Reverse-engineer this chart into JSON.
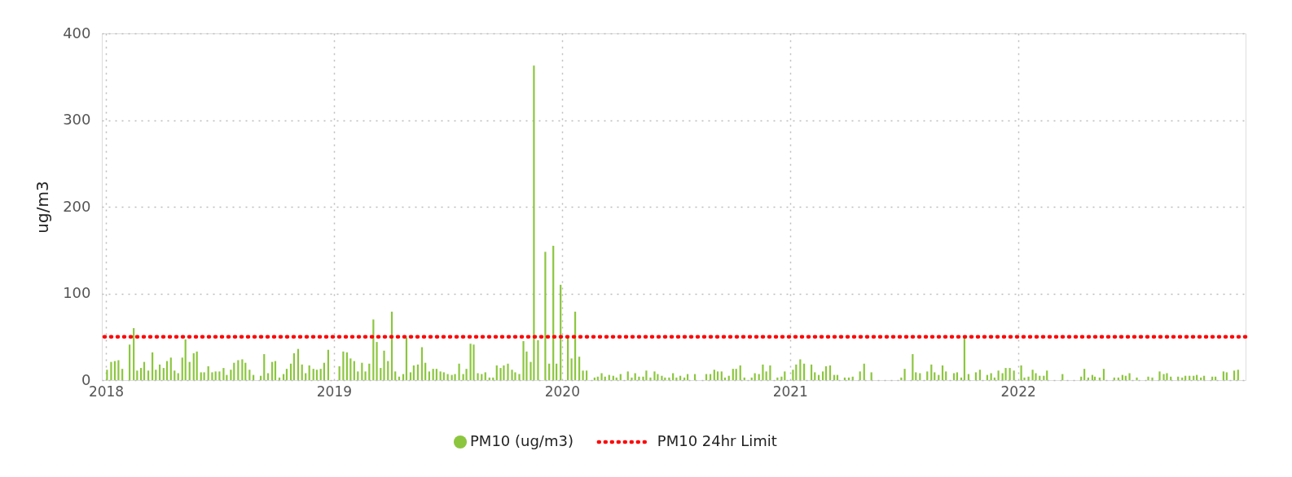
{
  "chart_data": {
    "type": "bar",
    "ylabel": "ug/m3",
    "x": [
      2018.005,
      2018.023,
      2018.039,
      2018.055,
      2018.072,
      2018.104,
      2018.122,
      2018.137,
      2018.154,
      2018.168,
      2018.186,
      2018.204,
      2018.219,
      2018.236,
      2018.253,
      2018.268,
      2018.285,
      2018.301,
      2018.317,
      2018.335,
      2018.349,
      2018.367,
      2018.385,
      2018.399,
      2018.417,
      2018.431,
      2018.449,
      2018.466,
      2018.481,
      2018.498,
      2018.516,
      2018.53,
      2018.548,
      2018.562,
      2018.58,
      2018.598,
      2018.612,
      2018.63,
      2018.647,
      2018.679,
      2018.694,
      2018.711,
      2018.729,
      2018.743,
      2018.761,
      2018.779,
      2018.793,
      2018.811,
      2018.825,
      2018.843,
      2018.86,
      2018.876,
      2018.892,
      2018.91,
      2018.925,
      2018.942,
      2018.957,
      2018.975,
      2019.024,
      2019.041,
      2019.057,
      2019.073,
      2019.089,
      2019.105,
      2019.123,
      2019.138,
      2019.155,
      2019.173,
      2019.188,
      2019.205,
      2019.22,
      2019.237,
      2019.254,
      2019.269,
      2019.286,
      2019.304,
      2019.318,
      2019.336,
      2019.35,
      2019.368,
      2019.386,
      2019.401,
      2019.418,
      2019.435,
      2019.45,
      2019.467,
      2019.482,
      2019.499,
      2019.517,
      2019.531,
      2019.549,
      2019.567,
      2019.581,
      2019.599,
      2019.613,
      2019.631,
      2019.648,
      2019.664,
      2019.682,
      2019.698,
      2019.714,
      2019.731,
      2019.745,
      2019.763,
      2019.781,
      2019.795,
      2019.813,
      2019.831,
      2019.845,
      2019.863,
      2019.877,
      2019.895,
      2019.927,
      2019.944,
      2019.962,
      2019.976,
      2019.994,
      2020.026,
      2020.042,
      2020.058,
      2020.076,
      2020.092,
      2020.108,
      2020.143,
      2020.157,
      2020.174,
      2020.189,
      2020.207,
      2020.225,
      2020.239,
      2020.257,
      2020.289,
      2020.306,
      2020.321,
      2020.338,
      2020.356,
      2020.37,
      2020.388,
      2020.406,
      2020.42,
      2020.438,
      2020.452,
      2020.47,
      2020.487,
      2020.502,
      2020.519,
      2020.537,
      2020.551,
      2020.583,
      2020.633,
      2020.651,
      2020.668,
      2020.683,
      2020.7,
      2020.715,
      2020.732,
      2020.75,
      2020.764,
      2020.782,
      2020.8,
      2020.832,
      2020.846,
      2020.864,
      2020.881,
      2020.896,
      2020.913,
      2020.945,
      2020.963,
      2020.977,
      2021.013,
      2021.027,
      2021.045,
      2021.062,
      2021.094,
      2021.109,
      2021.126,
      2021.144,
      2021.158,
      2021.176,
      2021.194,
      2021.208,
      2021.24,
      2021.258,
      2021.275,
      2021.307,
      2021.325,
      2021.357,
      2021.488,
      2021.503,
      2021.538,
      2021.552,
      2021.57,
      2021.602,
      2021.62,
      2021.634,
      2021.652,
      2021.669,
      2021.684,
      2021.719,
      2021.733,
      2021.751,
      2021.765,
      2021.783,
      2021.815,
      2021.833,
      2021.865,
      2021.882,
      2021.897,
      2021.914,
      2021.932,
      2021.946,
      2021.964,
      2021.982,
      2022.014,
      2022.028,
      2022.046,
      2022.064,
      2022.078,
      2022.095,
      2022.113,
      2022.127,
      2022.195,
      2022.277,
      2022.291,
      2022.308,
      2022.326,
      2022.337,
      2022.358,
      2022.376,
      2022.422,
      2022.44,
      2022.458,
      2022.472,
      2022.489,
      2022.521,
      2022.571,
      2022.589,
      2022.621,
      2022.639,
      2022.653,
      2022.67,
      2022.702,
      2022.72,
      2022.734,
      2022.752,
      2022.77,
      2022.784,
      2022.802,
      2022.816,
      2022.852,
      2022.866,
      2022.901,
      2022.915,
      2022.948,
      2022.965
    ],
    "series": [
      {
        "name": "PM10  (ug/m3)",
        "color": "#8cc63f",
        "values": [
          12,
          21,
          22,
          23,
          13,
          41,
          60,
          11,
          14,
          21,
          11,
          32,
          12,
          18,
          14,
          22,
          26,
          11,
          8,
          26,
          47,
          21,
          31,
          33,
          9,
          9,
          16,
          9,
          10,
          10,
          14,
          6,
          12,
          20,
          23,
          24,
          20,
          12,
          6,
          5,
          30,
          8,
          21,
          22,
          3,
          7,
          13,
          19,
          31,
          36,
          18,
          8,
          17,
          13,
          12,
          13,
          20,
          35,
          16,
          33,
          32,
          25,
          22,
          10,
          20,
          10,
          19,
          70,
          44,
          14,
          34,
          22,
          79,
          10,
          4,
          7,
          49,
          9,
          17,
          18,
          38,
          20,
          10,
          13,
          13,
          10,
          9,
          7,
          6,
          7,
          19,
          7,
          13,
          42,
          41,
          8,
          7,
          9,
          3,
          3,
          17,
          14,
          17,
          19,
          12,
          9,
          7,
          45,
          33,
          21,
          363,
          46,
          148,
          19,
          155,
          19,
          110,
          50,
          25,
          79,
          27,
          11,
          11,
          3,
          4,
          8,
          4,
          6,
          5,
          3,
          7,
          10,
          3,
          8,
          4,
          4,
          11,
          3,
          10,
          7,
          5,
          3,
          3,
          8,
          3,
          5,
          3,
          7,
          7,
          7,
          7,
          12,
          10,
          10,
          3,
          5,
          13,
          13,
          17,
          3,
          3,
          8,
          7,
          18,
          10,
          17,
          3,
          4,
          10,
          12,
          18,
          24,
          19,
          18,
          9,
          6,
          10,
          16,
          17,
          6,
          6,
          3,
          3,
          4,
          10,
          19,
          9,
          3,
          13,
          30,
          9,
          8,
          10,
          18,
          9,
          6,
          17,
          10,
          8,
          9,
          3,
          49,
          7,
          9,
          12,
          6,
          8,
          3,
          11,
          8,
          14,
          14,
          11,
          17,
          3,
          4,
          12,
          8,
          5,
          5,
          11,
          7,
          4,
          13,
          3,
          6,
          4,
          3,
          13,
          3,
          3,
          6,
          5,
          8,
          3,
          4,
          3,
          10,
          7,
          8,
          4,
          4,
          3,
          5,
          5,
          5,
          6,
          3,
          5,
          4,
          4,
          10,
          9,
          11,
          12
        ]
      }
    ],
    "xlim": [
      2018,
      2022.98
    ],
    "xticks": [
      2018,
      2019,
      2020,
      2021,
      2022
    ],
    "ylim": [
      0,
      400
    ],
    "yticks": [
      0,
      100,
      200,
      300,
      400
    ],
    "grid": true,
    "legend": "bottom",
    "ref_lines": [
      {
        "axis": "y",
        "value": 50,
        "label": "PM10 24hr Limit",
        "color": "#ff0000",
        "line_style": "dotted"
      }
    ]
  }
}
